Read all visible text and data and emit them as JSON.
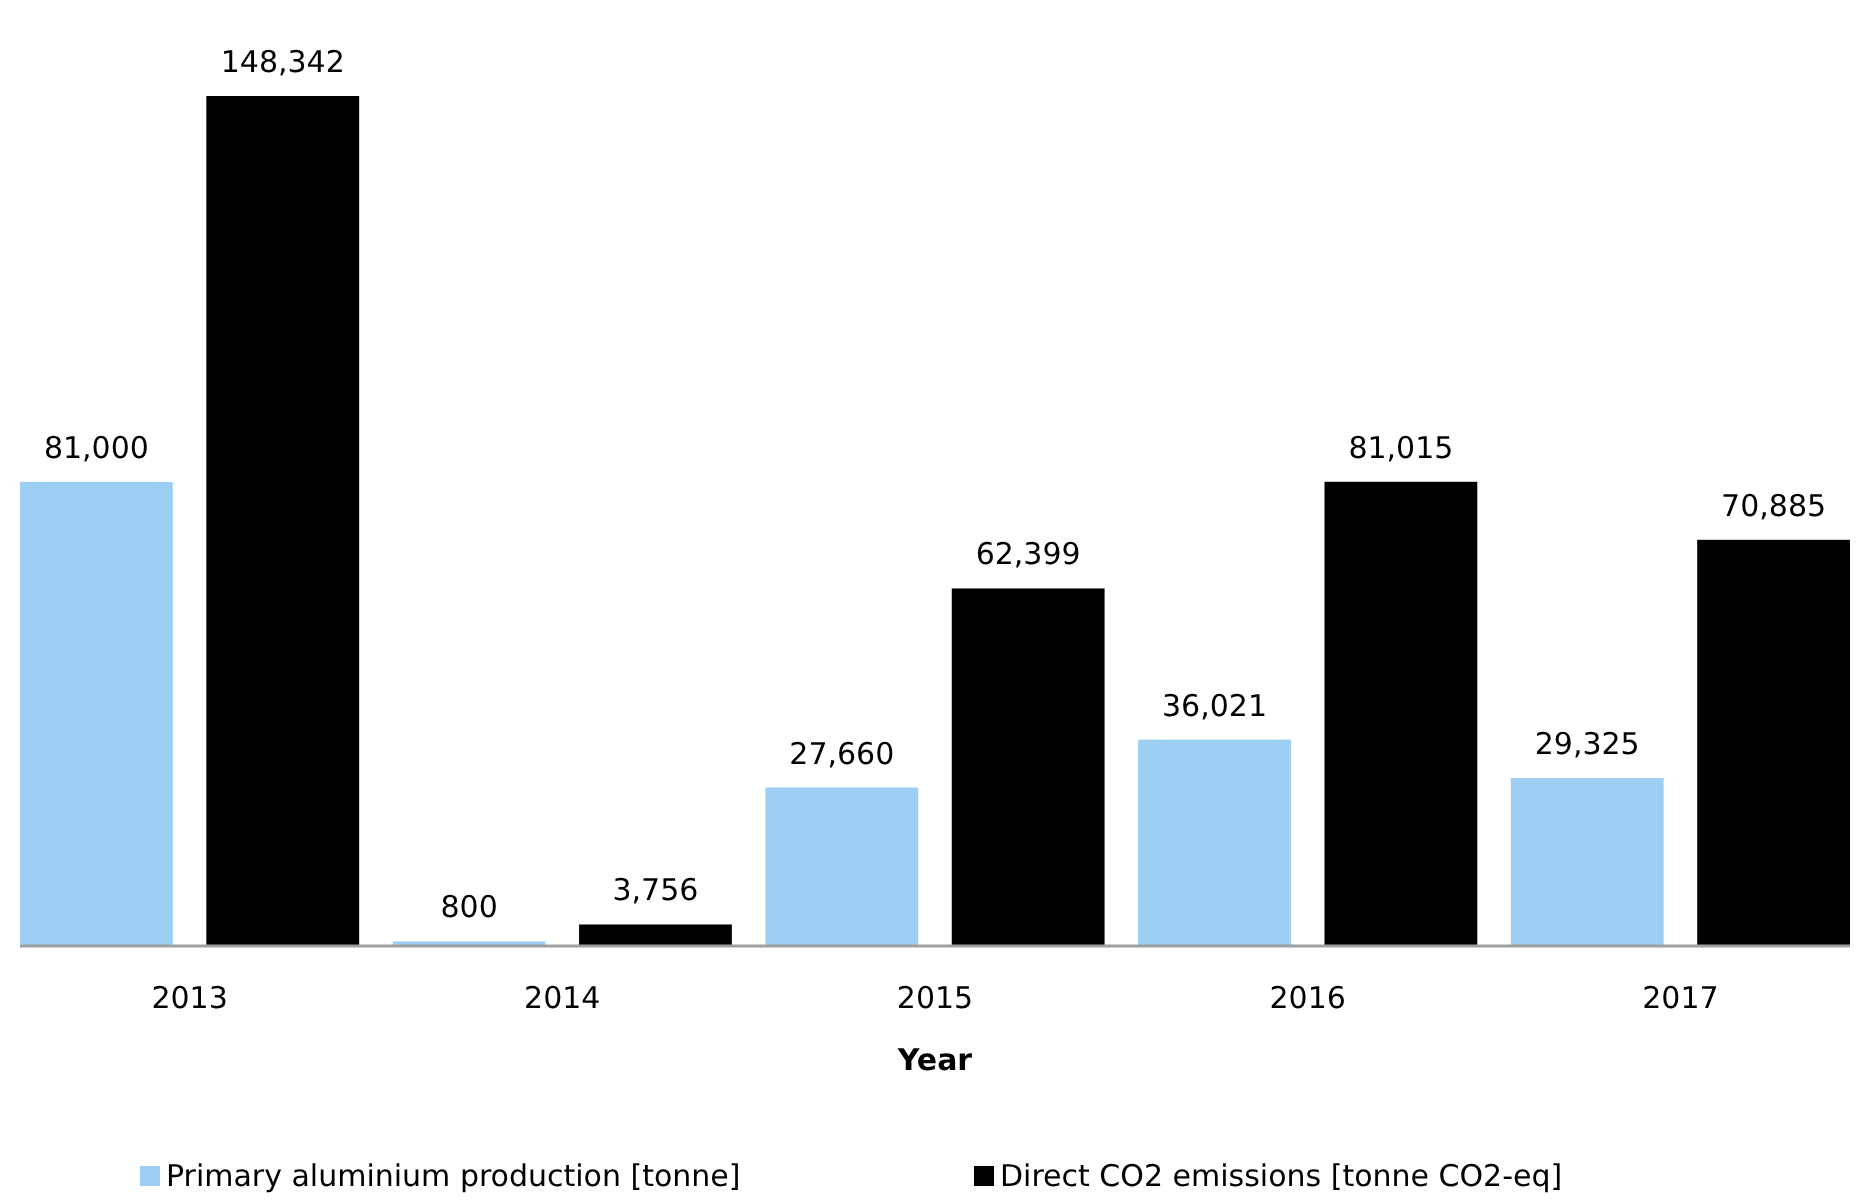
{
  "chart_data": {
    "type": "bar",
    "xlabel": "Year",
    "categories": [
      "2013",
      "2014",
      "2015",
      "2016",
      "2017"
    ],
    "series": [
      {
        "name": "Primary aluminium production [tonne]",
        "color": "#9dcff2",
        "values": [
          81000,
          800,
          27660,
          36021,
          29325
        ],
        "value_labels": [
          "81,000",
          "800",
          "27,660",
          "36,021",
          "29,325"
        ]
      },
      {
        "name": "Direct CO2 emissions [tonne CO2-eq]",
        "color": "#000000",
        "values": [
          148342,
          3756,
          62399,
          81015,
          70885
        ],
        "value_labels": [
          "148,342",
          "3,756",
          "62,399",
          "81,015",
          "70,885"
        ]
      }
    ],
    "legend": "bottom"
  }
}
